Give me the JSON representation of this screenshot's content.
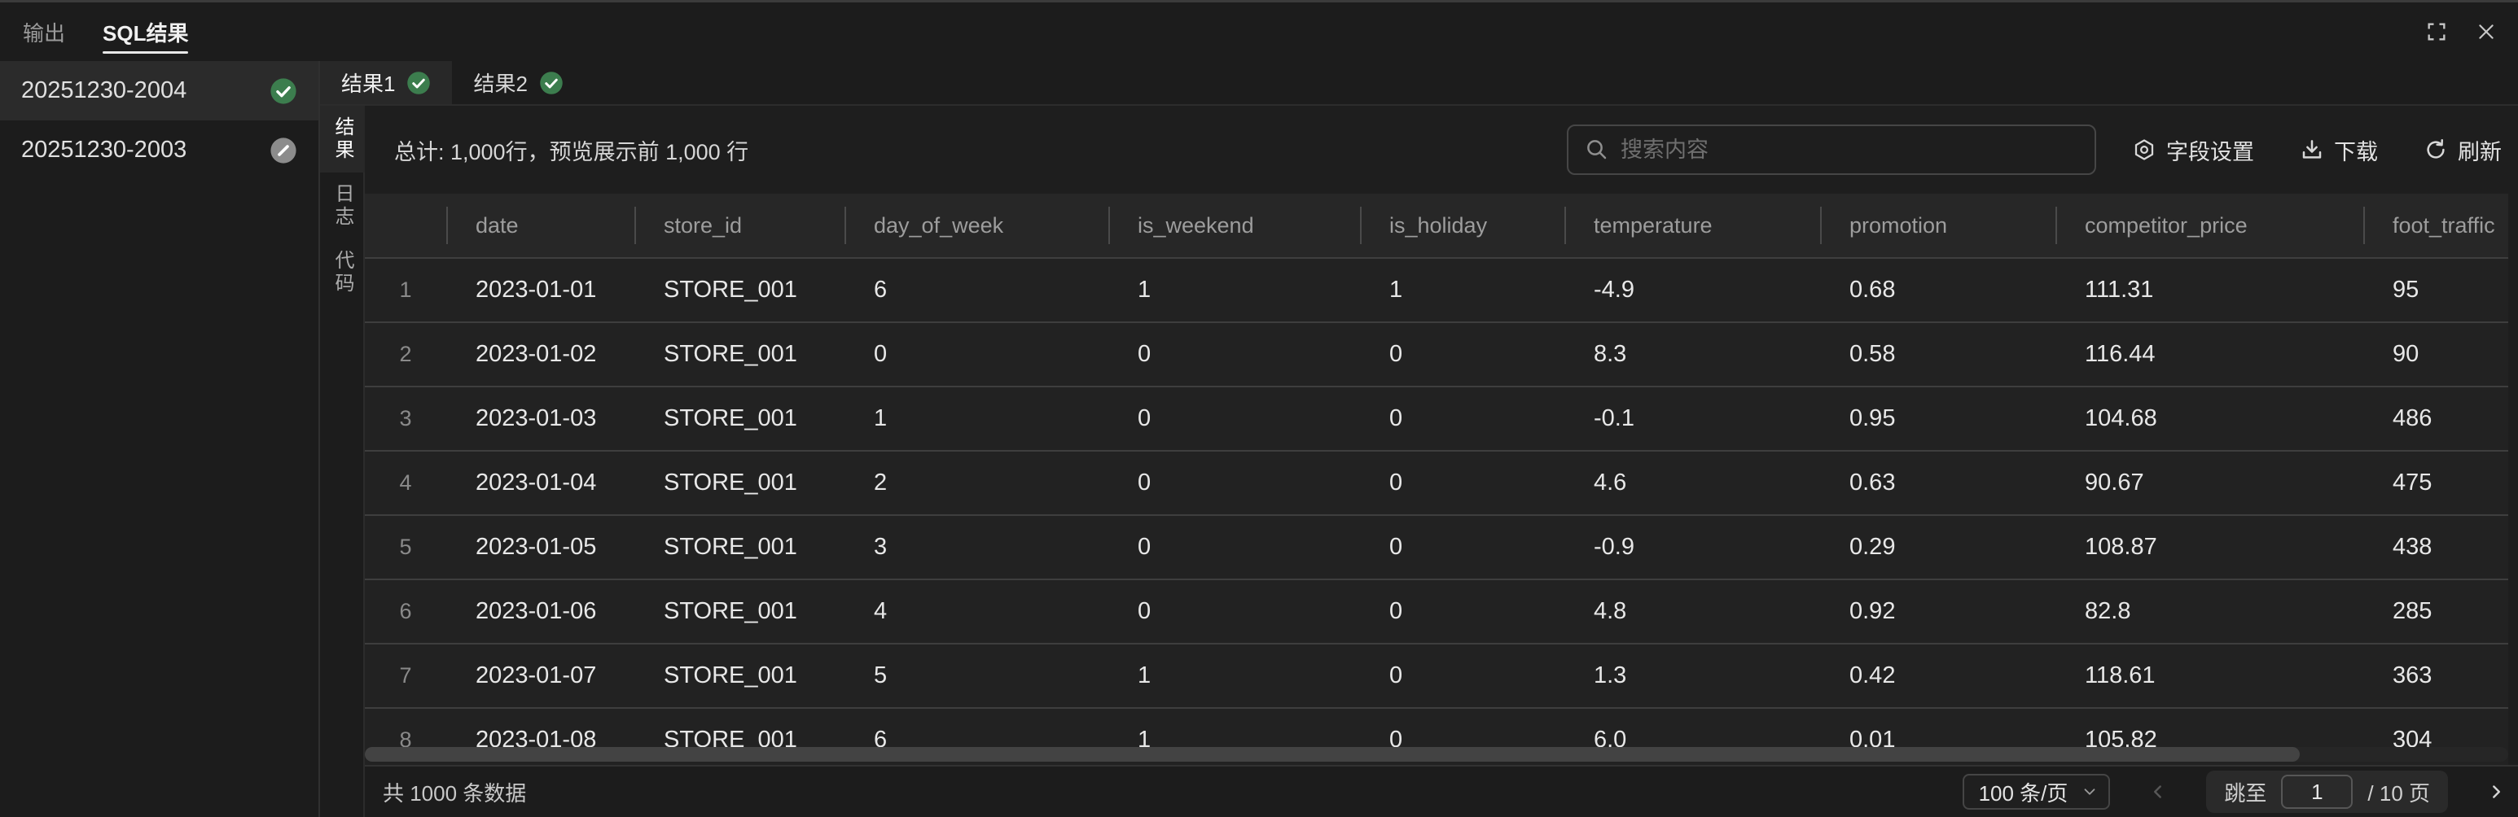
{
  "topbar": {
    "tabs": [
      {
        "label": "输出"
      },
      {
        "label": "SQL结果"
      }
    ]
  },
  "sidebar": {
    "items": [
      {
        "label": "20251230-2004",
        "status": "success"
      },
      {
        "label": "20251230-2003",
        "status": "skipped"
      }
    ]
  },
  "result_tabs": [
    {
      "label": "结果1",
      "status": "success"
    },
    {
      "label": "结果2",
      "status": "success"
    }
  ],
  "side_tabs": [
    {
      "label": "结果"
    },
    {
      "label": "日志"
    },
    {
      "label": "代码"
    }
  ],
  "toolbar": {
    "summary": "总计: 1,000行，预览展示前 1,000 行",
    "search_placeholder": "搜索内容",
    "field_settings_label": "字段设置",
    "download_label": "下载",
    "refresh_label": "刷新"
  },
  "table": {
    "columns": [
      "date",
      "store_id",
      "day_of_week",
      "is_weekend",
      "is_holiday",
      "temperature",
      "promotion",
      "competitor_price",
      "foot_traffic"
    ],
    "rows": [
      [
        "2023-01-01",
        "STORE_001",
        "6",
        "1",
        "1",
        "-4.9",
        "0.68",
        "111.31",
        "95"
      ],
      [
        "2023-01-02",
        "STORE_001",
        "0",
        "0",
        "0",
        "8.3",
        "0.58",
        "116.44",
        "90"
      ],
      [
        "2023-01-03",
        "STORE_001",
        "1",
        "0",
        "0",
        "-0.1",
        "0.95",
        "104.68",
        "486"
      ],
      [
        "2023-01-04",
        "STORE_001",
        "2",
        "0",
        "0",
        "4.6",
        "0.63",
        "90.67",
        "475"
      ],
      [
        "2023-01-05",
        "STORE_001",
        "3",
        "0",
        "0",
        "-0.9",
        "0.29",
        "108.87",
        "438"
      ],
      [
        "2023-01-06",
        "STORE_001",
        "4",
        "0",
        "0",
        "4.8",
        "0.92",
        "82.8",
        "285"
      ],
      [
        "2023-01-07",
        "STORE_001",
        "5",
        "1",
        "0",
        "1.3",
        "0.42",
        "118.61",
        "363"
      ],
      [
        "2023-01-08",
        "STORE_001",
        "6",
        "1",
        "0",
        "6.0",
        "0.01",
        "105.82",
        "304"
      ]
    ]
  },
  "footer": {
    "total_label": "共 1000 条数据",
    "page_size_label": "100 条/页",
    "jump_label": "跳至",
    "page_value": "1",
    "page_total_label": "/ 10 页"
  },
  "colors": {
    "success_green": "#3c7d4e",
    "skipped_gray": "#8c8c8c",
    "active_underline": "#e8e8e8"
  }
}
